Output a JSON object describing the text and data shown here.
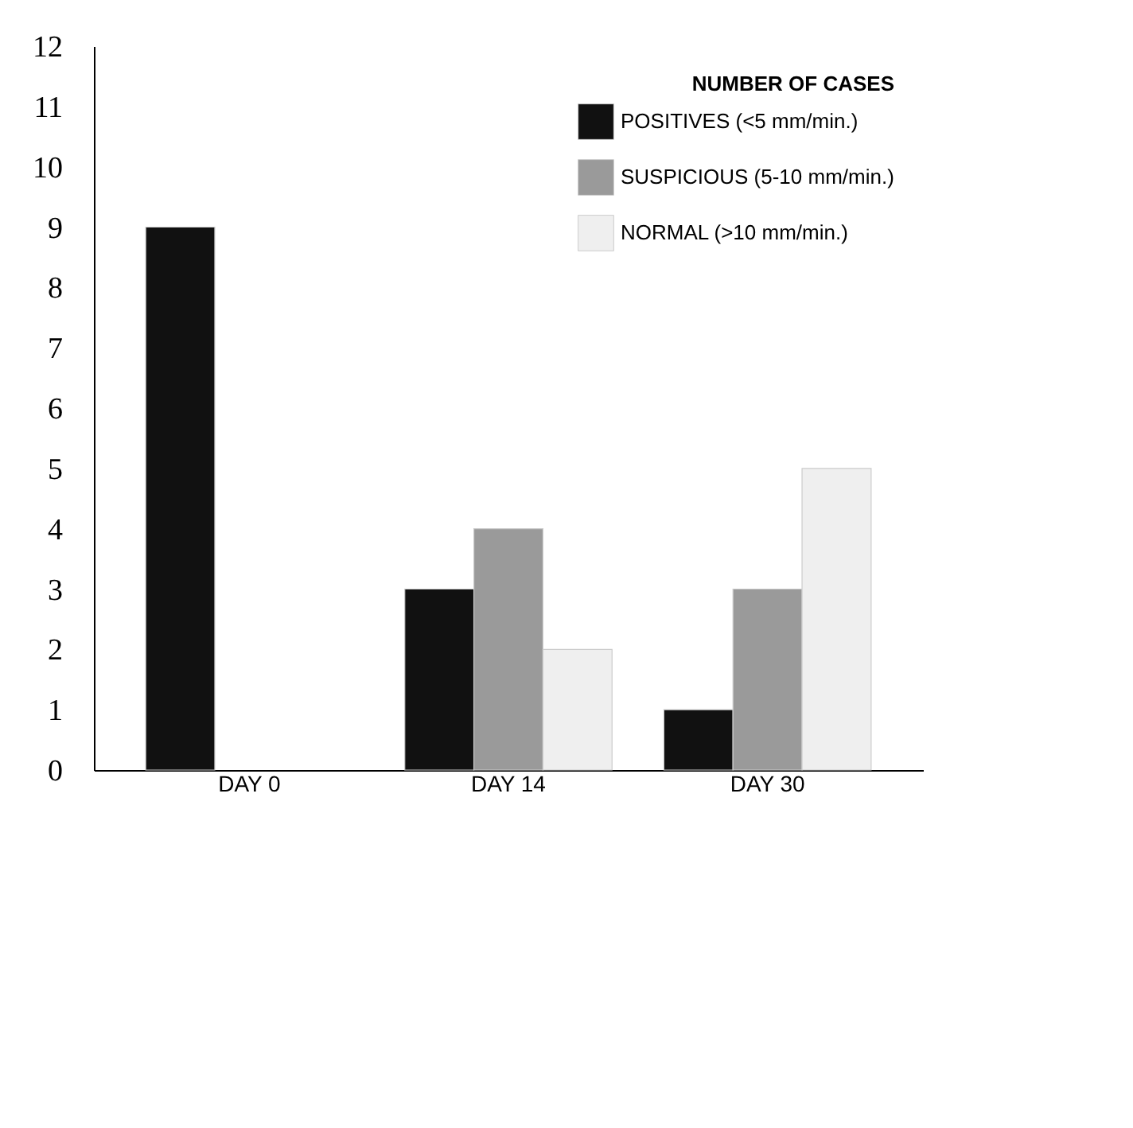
{
  "chart_data": {
    "type": "bar",
    "legend_title": "NUMBER OF CASES",
    "categories": [
      "DAY 0",
      "DAY 14",
      "DAY 30"
    ],
    "series": [
      {
        "name": "POSITIVES (<5 mm/min.)",
        "color": "#111111",
        "values": [
          9,
          3,
          1
        ]
      },
      {
        "name": "SUSPICIOUS (5-10 mm/min.)",
        "color": "#9a9a9a",
        "values": [
          0,
          4,
          3
        ]
      },
      {
        "name": "NORMAL (>10 mm/min.)",
        "color": "#efefef",
        "values": [
          0,
          2,
          5
        ]
      }
    ],
    "ylim": [
      0,
      12
    ],
    "yticks": [
      0,
      1,
      2,
      3,
      4,
      5,
      6,
      7,
      8,
      9,
      10,
      11,
      12
    ],
    "grid": false,
    "legend": "top right"
  }
}
